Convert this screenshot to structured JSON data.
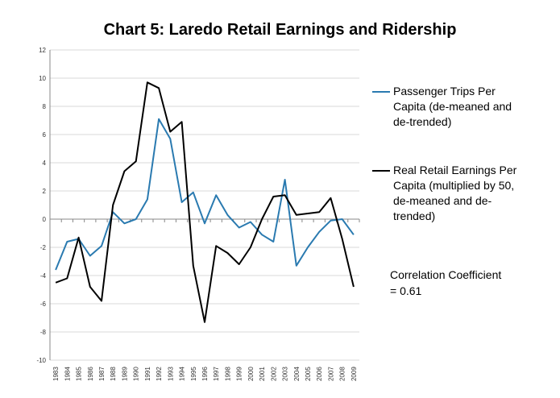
{
  "chart_data": {
    "type": "line",
    "title": "Chart 5: Laredo Retail Earnings and Ridership",
    "xlabel": "",
    "ylabel": "",
    "ylim": [
      -10,
      12
    ],
    "yticks": [
      -10,
      -8,
      -6,
      -4,
      -2,
      0,
      2,
      4,
      6,
      8,
      10,
      12
    ],
    "grid": "horizontal",
    "legend_position": "right",
    "categories": [
      "1983",
      "1984",
      "1985",
      "1986",
      "1987",
      "1988",
      "1989",
      "1990",
      "1991",
      "1992",
      "1993",
      "1994",
      "1995",
      "1996",
      "1997",
      "1998",
      "1999",
      "2000",
      "2001",
      "2002",
      "2003",
      "2004",
      "2005",
      "2006",
      "2007",
      "2008",
      "2009"
    ],
    "series": [
      {
        "name": "Passenger Trips Per\nCapita (de-meaned and\nde-trended)",
        "color": "#2a7ab0",
        "values": [
          -3.6,
          -1.6,
          -1.4,
          -2.6,
          -1.9,
          0.5,
          -0.3,
          0.0,
          1.4,
          7.1,
          5.7,
          1.2,
          1.9,
          -0.3,
          1.7,
          0.3,
          -0.6,
          -0.2,
          -1.1,
          -1.6,
          2.8,
          -3.3,
          -2.0,
          -0.9,
          -0.1,
          0.0,
          -1.1
        ]
      },
      {
        "name": "Real Retail Earnings Per\nCapita (multiplied by 50,\nde-meaned and de-\ntrended)",
        "color": "#000000",
        "values": [
          -4.5,
          -4.2,
          -1.3,
          -4.8,
          -5.8,
          1.0,
          3.4,
          4.1,
          9.7,
          9.3,
          6.2,
          6.9,
          -3.3,
          -7.3,
          -1.9,
          -2.4,
          -3.2,
          -2.0,
          0.0,
          1.6,
          1.7,
          0.3,
          0.4,
          0.5,
          1.5,
          -1.4,
          -4.8
        ]
      }
    ],
    "annotation": "Correlation Coefficient\n= 0.61"
  }
}
